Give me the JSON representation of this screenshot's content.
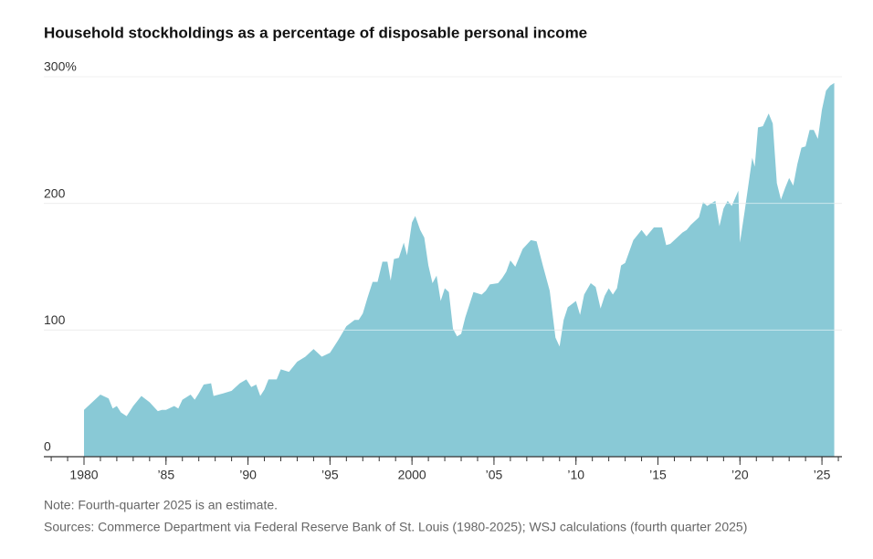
{
  "chart_data": {
    "type": "area",
    "title": "Household stockholdings as a percentage of disposable personal income",
    "note": "Note: Fourth-quarter 2025 is an estimate.",
    "source": "Sources: Commerce Department via Federal Reserve Bank of St. Louis (1980-2025); WSJ calculations (fourth quarter 2025)",
    "color": "#89c9d6",
    "xlim": [
      1977.55,
      2026.22
    ],
    "ylim": [
      0,
      300
    ],
    "xticks": [
      {
        "value": 1980,
        "label": "1980"
      },
      {
        "value": 1985,
        "label": "’85"
      },
      {
        "value": 1990,
        "label": "’90"
      },
      {
        "value": 1995,
        "label": "’95"
      },
      {
        "value": 2000,
        "label": "2000"
      },
      {
        "value": 2005,
        "label": "’05"
      },
      {
        "value": 2010,
        "label": "’10"
      },
      {
        "value": 2015,
        "label": "’15"
      },
      {
        "value": 2020,
        "label": "’20"
      },
      {
        "value": 2025,
        "label": "’25"
      }
    ],
    "yticks": [
      0,
      100,
      200,
      {
        "value": 300,
        "label": "300%"
      }
    ],
    "grid": true,
    "x": [
      1980.0,
      1980.5,
      1981.0,
      1981.5,
      1981.75,
      1982.0,
      1982.25,
      1982.6,
      1983.0,
      1983.5,
      1984.0,
      1984.5,
      1984.75,
      1985.0,
      1985.5,
      1985.75,
      1986.0,
      1986.5,
      1986.75,
      1987.0,
      1987.3,
      1987.75,
      1987.9,
      1988.5,
      1989.0,
      1989.5,
      1989.9,
      1990.2,
      1990.5,
      1990.75,
      1991.0,
      1991.25,
      1991.75,
      1992.0,
      1992.5,
      1993.0,
      1993.5,
      1994.0,
      1994.5,
      1995.0,
      1995.5,
      1996.0,
      1996.5,
      1996.75,
      1997.0,
      1997.3,
      1997.6,
      1997.9,
      1998.2,
      1998.5,
      1998.7,
      1998.9,
      1999.2,
      1999.5,
      1999.7,
      2000.0,
      2000.2,
      2000.5,
      2000.75,
      2001.0,
      2001.25,
      2001.5,
      2001.75,
      2002.0,
      2002.25,
      2002.5,
      2002.75,
      2003.0,
      2003.25,
      2003.5,
      2003.75,
      2004.25,
      2004.5,
      2004.75,
      2005.25,
      2005.5,
      2005.75,
      2006.0,
      2006.3,
      2006.75,
      2007.25,
      2007.6,
      2008.0,
      2008.4,
      2008.75,
      2009.0,
      2009.25,
      2009.5,
      2010.0,
      2010.25,
      2010.5,
      2010.9,
      2011.2,
      2011.5,
      2011.75,
      2012.0,
      2012.25,
      2012.5,
      2012.75,
      2013.0,
      2013.5,
      2014.0,
      2014.3,
      2014.75,
      2015.25,
      2015.5,
      2015.75,
      2016.0,
      2016.5,
      2016.75,
      2017.0,
      2017.5,
      2017.75,
      2018.0,
      2018.25,
      2018.5,
      2018.75,
      2019.0,
      2019.25,
      2019.5,
      2019.9,
      2020.0,
      2020.3,
      2020.75,
      2020.9,
      2021.1,
      2021.4,
      2021.75,
      2022.0,
      2022.25,
      2022.5,
      2022.75,
      2023.0,
      2023.25,
      2023.5,
      2023.75,
      2024.0,
      2024.25,
      2024.5,
      2024.75,
      2025.0,
      2025.25,
      2025.5,
      2025.75
    ],
    "values": [
      37,
      43,
      49,
      46,
      38,
      40,
      35,
      32,
      40,
      48,
      43,
      36,
      37,
      37,
      40,
      38,
      45,
      49,
      45,
      50,
      57,
      58,
      48,
      50,
      52,
      58,
      61,
      55,
      57,
      48,
      53,
      61,
      61,
      69,
      67,
      75,
      79,
      85,
      79,
      82,
      92,
      103,
      108,
      108,
      113,
      126,
      138,
      138,
      154,
      154,
      139,
      156,
      157,
      169,
      159,
      185,
      190,
      179,
      173,
      151,
      137,
      143,
      123,
      133,
      130,
      101,
      95,
      97,
      110,
      120,
      130,
      128,
      131,
      136,
      137,
      141,
      146,
      155,
      150,
      164,
      171,
      170,
      150,
      131,
      94,
      87,
      108,
      118,
      123,
      112,
      128,
      137,
      134,
      117,
      127,
      133,
      128,
      133,
      151,
      153,
      171,
      179,
      174,
      181,
      181,
      167,
      168,
      171,
      177,
      179,
      183,
      189,
      201,
      198,
      200,
      202,
      182,
      196,
      202,
      198,
      210,
      169,
      195,
      236,
      229,
      260,
      261,
      271,
      263,
      216,
      203,
      212,
      220,
      214,
      231,
      244,
      245,
      258,
      258,
      251,
      274,
      289,
      293,
      295
    ]
  }
}
